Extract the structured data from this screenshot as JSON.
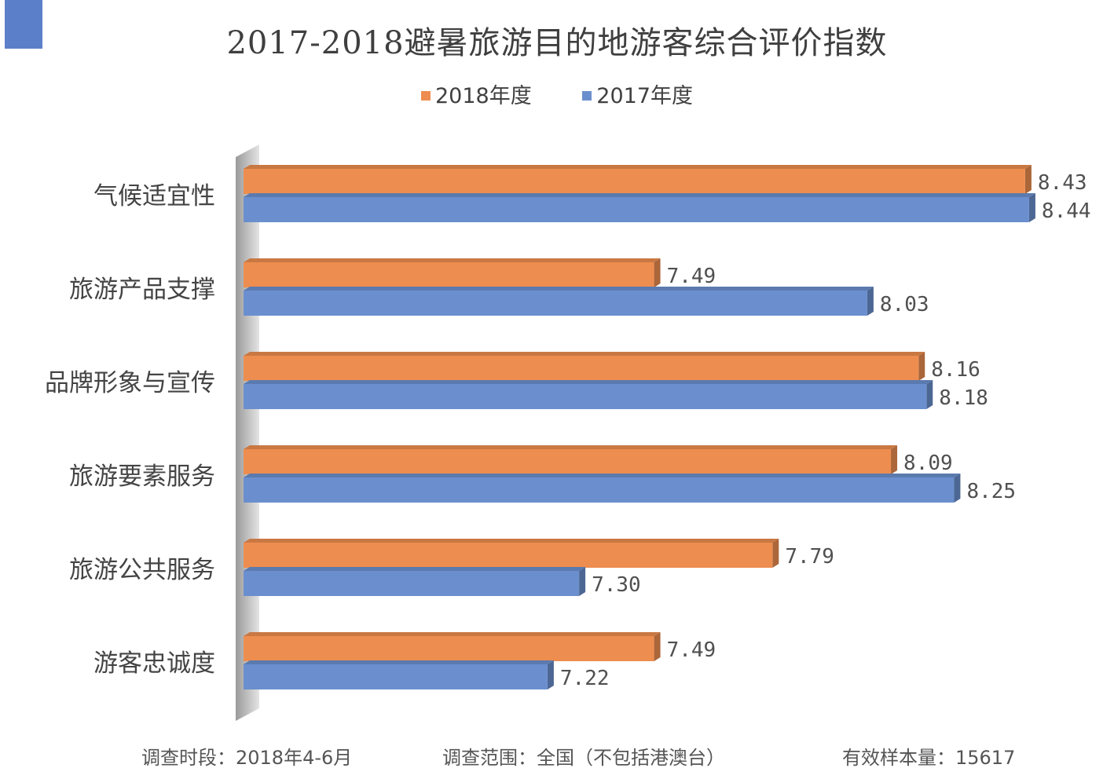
{
  "chart_data": {
    "type": "bar",
    "orientation": "horizontal",
    "title": "2017-2018避暑旅游目的地游客综合评价指数",
    "categories": [
      "气候适宜性",
      "旅游产品支撑",
      "品牌形象与宣传",
      "旅游要素服务",
      "旅游公共服务",
      "游客忠诚度"
    ],
    "series": [
      {
        "name": "2018年度",
        "color": "#ed8d4f",
        "values": [
          8.43,
          7.49,
          8.16,
          8.09,
          7.79,
          7.49
        ],
        "labels": [
          "8.43",
          "7.49",
          "8.16",
          "8.09",
          "7.79",
          "7.49"
        ]
      },
      {
        "name": "2017年度",
        "color": "#6b8fce",
        "values": [
          8.44,
          8.03,
          8.18,
          8.25,
          7.3,
          7.22
        ],
        "labels": [
          "8.44",
          "8.03",
          "8.18",
          "8.25",
          "7.30",
          "7.22"
        ]
      }
    ],
    "xlim": [
      6.45,
      8.47
    ],
    "legend_position": "top",
    "grid": false,
    "style": "3d"
  },
  "footer": {
    "period": "调查时段：2018年4-6月",
    "scope": "调查范围：全国（不包括港澳台）",
    "sample": "有效样本量：15617"
  },
  "colors": {
    "accent": "#5b80c9"
  }
}
